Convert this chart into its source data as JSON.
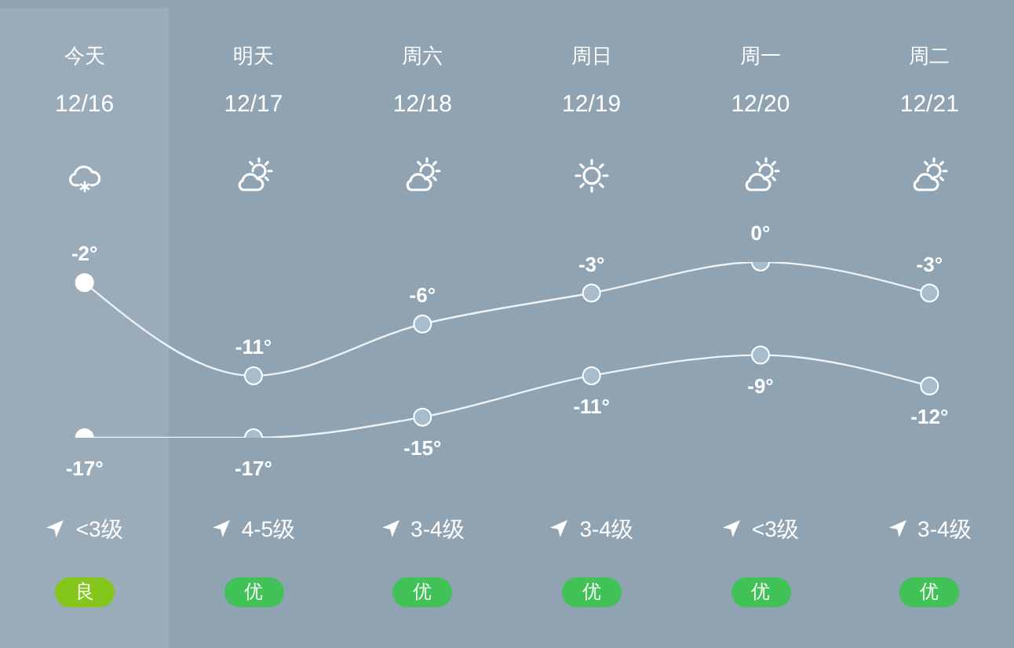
{
  "chart_data": {
    "type": "line",
    "categories": [
      "今天",
      "明天",
      "周六",
      "周日",
      "周一",
      "周二"
    ],
    "series": [
      {
        "color": "#eef2f5",
        "values": [
          -2,
          -11,
          -6,
          -3,
          0,
          -3
        ],
        "colors": [
          "#ffffff",
          "#a9bccb",
          "#a9bccb",
          "#a9bccb",
          "#a9bccb",
          "#a9bccb"
        ],
        "value_labels": [
          "-2°",
          "-11°",
          "-6°",
          "-3°",
          "0°",
          "-3°"
        ]
      },
      {
        "color": "#eef2f5",
        "values": [
          -17,
          -17,
          -15,
          -11,
          -9,
          -12
        ],
        "colors": [
          "#ffffff",
          "#a9bccb",
          "#a9bccb",
          "#a9bccb",
          "#a9bccb",
          "#a9bccb"
        ],
        "value_labels": [
          "-17°",
          "-17°",
          "-15°",
          "-11°",
          "-9°",
          "-12°"
        ]
      }
    ],
    "marker": "circle",
    "bands": [
      {
        "axis": "x",
        "from": "今天",
        "to": "今天",
        "color": "#9aabba"
      }
    ],
    "annotations": [
      "12/16",
      "12/17",
      "12/18",
      "12/19",
      "12/20",
      "12/21",
      "<3级",
      "4-5级",
      "3-4级",
      "3-4级",
      "<3级",
      "3-4级",
      "良",
      "优",
      "优",
      "优",
      "优",
      "优"
    ]
  }
}
